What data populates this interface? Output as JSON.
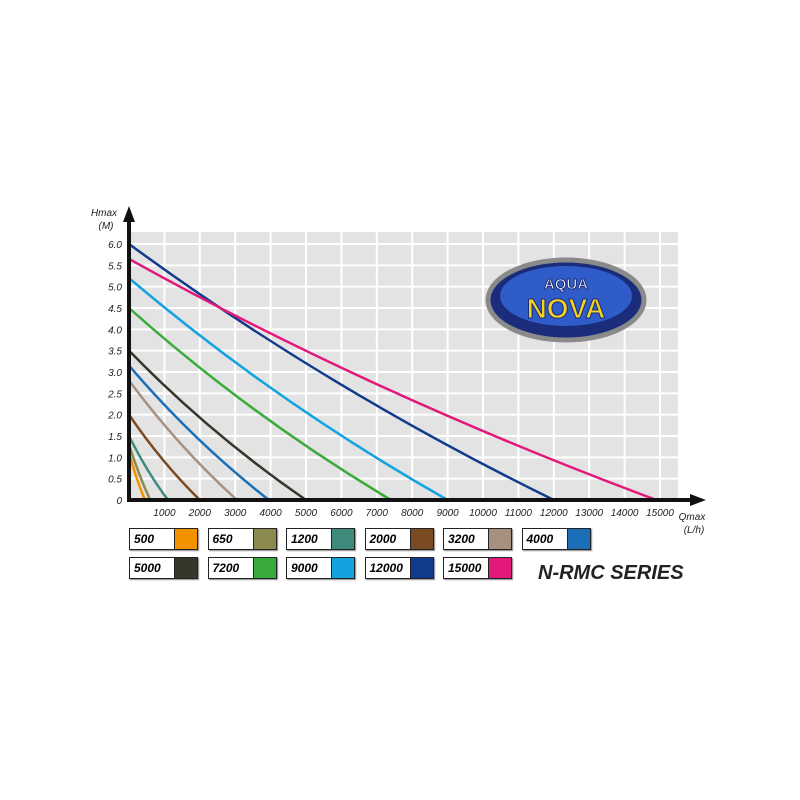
{
  "chart_data": {
    "type": "line",
    "title": "",
    "xlabel": "Qmax (L/h)",
    "ylabel": "Hmax (M)",
    "xlabel_line1": "Qmax",
    "xlabel_line2": "(L/h)",
    "ylabel_line1": "Hmax",
    "ylabel_line2": "(M)",
    "xlim": [
      0,
      15500
    ],
    "ylim": [
      0,
      6.3
    ],
    "xticks": [
      1000,
      2000,
      3000,
      4000,
      5000,
      6000,
      7000,
      8000,
      9000,
      10000,
      11000,
      12000,
      13000,
      14000,
      15000
    ],
    "yticks": [
      "0",
      "0.5",
      "1.0",
      "1.5",
      "2.0",
      "2.5",
      "3.0",
      "3.5",
      "4.0",
      "4.5",
      "5.0",
      "5.5",
      "6.0"
    ],
    "grid": true,
    "legend_placement": "bottom",
    "series": [
      {
        "name": "500",
        "color": "#f39200",
        "hmax": 1.1,
        "qmax": 450
      },
      {
        "name": "650",
        "color": "#8c8a4e",
        "hmax": 1.3,
        "qmax": 600
      },
      {
        "name": "1200",
        "color": "#3e8a7c",
        "hmax": 1.5,
        "qmax": 1100
      },
      {
        "name": "2000",
        "color": "#7a4a22",
        "hmax": 2.0,
        "qmax": 2000
      },
      {
        "name": "3200",
        "color": "#a89080",
        "hmax": 2.8,
        "qmax": 3050
      },
      {
        "name": "4000",
        "color": "#1a6fb8",
        "hmax": 3.15,
        "qmax": 3950
      },
      {
        "name": "5000",
        "color": "#36362a",
        "hmax": 3.5,
        "qmax": 5000
      },
      {
        "name": "7200",
        "color": "#3aaa3a",
        "hmax": 4.5,
        "qmax": 7400
      },
      {
        "name": "9000",
        "color": "#13a3e0",
        "hmax": 5.2,
        "qmax": 9000
      },
      {
        "name": "12000",
        "color": "#123b8c",
        "hmax": 6.0,
        "qmax": 12000
      },
      {
        "name": "15000",
        "color": "#e3197a",
        "hmax": 5.65,
        "qmax": 14900
      }
    ]
  },
  "series_title": "N-RMC SERIES",
  "logo": {
    "line1": "AQUA",
    "line2": "NOVA"
  }
}
